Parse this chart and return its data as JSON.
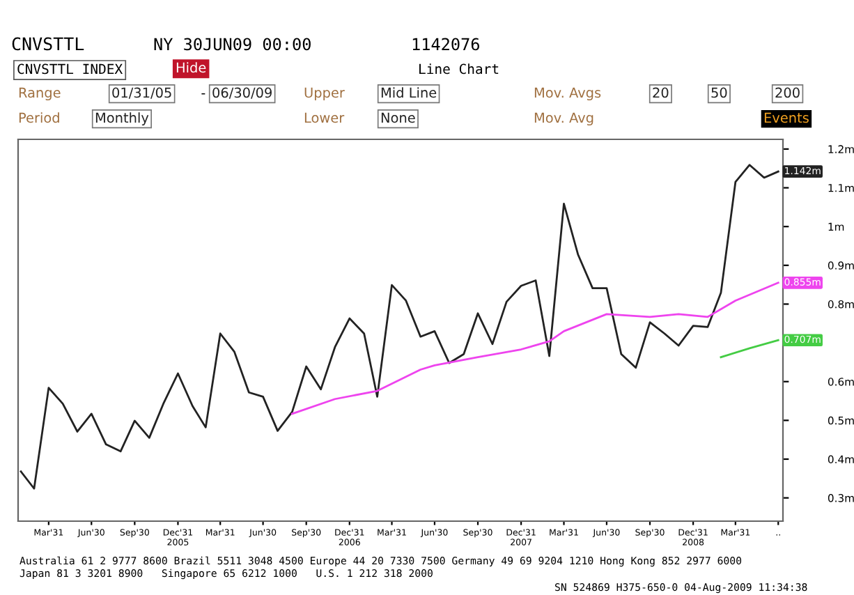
{
  "chart_data": {
    "type": "line",
    "title": "CNVSTTL",
    "subtitle": "CNVSTTL INDEX",
    "annotations": [
      "NY 30JUN09 00:00",
      "1142076",
      "Hide",
      "Line Chart",
      "Range",
      "01/31/05",
      "-",
      "06/30/09",
      "Upper",
      "Mid Line",
      "Mov. Avgs",
      "20",
      "50",
      "200",
      "Period",
      "Monthly",
      "Lower",
      "None",
      "Mov. Avg",
      "Events",
      "Australia 61 2 9777 8600 Brazil 5511 3048 4500 Europe 44 20 7330 7500 Germany 49 69 9204 1210 Hong Kong 852 2977 6000",
      "Japan 81 3 3201 8900   Singapore 65 6212 1000   U.S. 1 212 318 2000",
      "SN 524869 H375-650-0 04-Aug-2009 11:34:38"
    ],
    "series": [
      {
        "color": "#222222",
        "x": [
          "2005-01-31",
          "2005-02-28",
          "2005-03-31",
          "2005-04-30",
          "2005-05-31",
          "2005-06-30",
          "2005-07-31",
          "2005-08-31",
          "2005-09-30",
          "2005-10-31",
          "2005-11-30",
          "2005-12-31",
          "2006-01-31",
          "2006-02-28",
          "2006-03-31",
          "2006-04-30",
          "2006-05-31",
          "2006-06-30",
          "2006-07-31",
          "2006-08-31",
          "2006-09-30",
          "2006-10-31",
          "2006-11-30",
          "2006-12-31",
          "2007-01-31",
          "2007-02-28",
          "2007-03-31",
          "2007-04-30",
          "2007-05-31",
          "2007-06-30",
          "2007-07-31",
          "2007-08-31",
          "2007-09-30",
          "2007-10-31",
          "2007-11-30",
          "2007-12-31",
          "2008-01-31",
          "2008-02-29",
          "2008-03-31",
          "2008-04-30",
          "2008-05-31",
          "2008-06-30",
          "2008-07-31",
          "2008-08-31",
          "2008-09-30",
          "2008-10-31",
          "2008-11-30",
          "2008-12-31",
          "2009-01-31",
          "2009-02-28",
          "2009-03-31",
          "2009-04-30",
          "2009-05-31",
          "2009-06-30"
        ],
        "values": [
          0.368,
          0.324,
          0.584,
          0.543,
          0.471,
          0.517,
          0.438,
          0.42,
          0.499,
          0.455,
          0.543,
          0.621,
          0.537,
          0.482,
          0.724,
          0.677,
          0.572,
          0.561,
          0.473,
          0.522,
          0.639,
          0.58,
          0.689,
          0.763,
          0.724,
          0.561,
          0.849,
          0.809,
          0.716,
          0.73,
          0.648,
          0.671,
          0.776,
          0.697,
          0.806,
          0.847,
          0.861,
          0.666,
          1.059,
          0.928,
          0.841,
          0.841,
          0.671,
          0.636,
          0.753,
          0.724,
          0.693,
          0.744,
          0.741,
          0.829,
          1.115,
          1.159,
          1.126,
          1.142
        ],
        "value_labels": [
          null,
          null,
          null,
          null,
          null,
          null,
          null,
          null,
          null,
          null,
          null,
          null,
          null,
          null,
          null,
          null,
          null,
          null,
          null,
          null,
          null,
          null,
          null,
          null,
          null,
          null,
          null,
          null,
          null,
          null,
          null,
          null,
          null,
          null,
          null,
          null,
          null,
          null,
          null,
          null,
          null,
          null,
          null,
          null,
          null,
          null,
          null,
          null,
          null,
          null,
          null,
          null,
          null,
          "1.142m"
        ]
      },
      {
        "color": "#ee44ee",
        "x": [
          "2006-08-31",
          "2006-11-30",
          "2007-02-28",
          "2007-05-31",
          "2007-06-30",
          "2007-09-30",
          "2007-12-31",
          "2008-02-29",
          "2008-03-31",
          "2008-06-30",
          "2008-09-30",
          "2008-11-30",
          "2009-01-31",
          "2009-03-31",
          "2009-06-30"
        ],
        "values": [
          0.517,
          0.555,
          0.576,
          0.631,
          0.642,
          0.663,
          0.683,
          0.704,
          0.73,
          0.774,
          0.767,
          0.774,
          0.767,
          0.809,
          0.855
        ],
        "value_labels": [
          null,
          null,
          null,
          null,
          null,
          null,
          null,
          null,
          null,
          null,
          null,
          null,
          null,
          null,
          "0.855m"
        ]
      },
      {
        "color": "#44cc44",
        "x": [
          "2009-02-28",
          "2009-04-30",
          "2009-06-30"
        ],
        "values": [
          0.663,
          0.686,
          0.707
        ],
        "value_labels": [
          null,
          null,
          "0.707m"
        ]
      }
    ],
    "xlim": [
      "2005-01-25",
      "2009-07-10"
    ],
    "xticks": [
      {
        "value": "2005-03-31",
        "label": "Mar'31"
      },
      {
        "value": "2005-06-30",
        "label": "Jun'30"
      },
      {
        "value": "2005-09-30",
        "label": "Sep'30"
      },
      {
        "value": "2005-12-31",
        "label": "Dec'31\n2005"
      },
      {
        "value": "2006-03-31",
        "label": "Mar'31"
      },
      {
        "value": "2006-06-30",
        "label": "Jun'30"
      },
      {
        "value": "2006-09-30",
        "label": "Sep'30"
      },
      {
        "value": "2006-12-31",
        "label": "Dec'31\n2006"
      },
      {
        "value": "2007-03-31",
        "label": "Mar'31"
      },
      {
        "value": "2007-06-30",
        "label": "Jun'30"
      },
      {
        "value": "2007-09-30",
        "label": "Sep'30"
      },
      {
        "value": "2007-12-31",
        "label": "Dec'31\n2007"
      },
      {
        "value": "2008-03-31",
        "label": "Mar'31"
      },
      {
        "value": "2008-06-30",
        "label": "Jun'30"
      },
      {
        "value": "2008-09-30",
        "label": "Sep'30"
      },
      {
        "value": "2008-12-31",
        "label": "Dec'31\n2008"
      },
      {
        "value": "2009-03-31",
        "label": "Mar'31"
      },
      {
        "value": "2009-06-30",
        "label": ".."
      }
    ],
    "ylim": [
      0.24,
      1.225
    ],
    "yticks": [
      {
        "value": 0.3,
        "label": "0.3m"
      },
      {
        "value": 0.4,
        "label": "0.4m"
      },
      {
        "value": 0.5,
        "label": "0.5m"
      },
      {
        "value": 0.6,
        "label": "0.6m"
      },
      {
        "value": 0.7,
        "label": null
      },
      {
        "value": 0.8,
        "label": "0.8m"
      },
      {
        "value": 0.9,
        "label": "0.9m"
      },
      {
        "value": 1.0,
        "label": "1m"
      },
      {
        "value": 1.1,
        "label": "1.1m"
      },
      {
        "value": 1.2,
        "label": "1.2m"
      }
    ],
    "grid": false,
    "marker": "none",
    "line_style": "solid"
  }
}
